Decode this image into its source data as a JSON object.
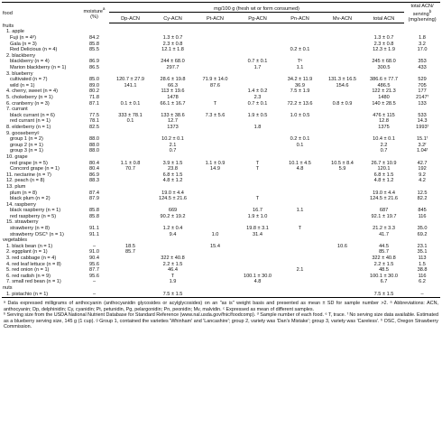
{
  "header": {
    "food": "food",
    "moisture": "moisture",
    "moisture_sup": "a",
    "moisture_unit": "(%)",
    "mg_span": "mg/100 g (fresh wt or form consumed)",
    "cols": [
      "Dp-ACN",
      "Cy-ACN",
      "Pt-ACN",
      "Pg-ACN",
      "Pn-ACN",
      "Mv-ACN",
      "total ACN"
    ],
    "serving": "total ACN/",
    "serving2": "serving",
    "serving_sup": "b",
    "serving_unit": "(mg/serving)"
  },
  "rows": [
    {
      "label": "fruits",
      "cat": true,
      "indent": 0
    },
    {
      "label": "1. apple",
      "cat": true,
      "indent": 1
    },
    {
      "label": "Fuji (n = 4ᵈ)",
      "indent": 2,
      "v": [
        "84.2",
        "",
        "1.3 ± 0.7",
        "",
        "",
        "",
        "",
        "1.3 ± 0.7",
        "1.8"
      ]
    },
    {
      "label": "Gala (n = 3)",
      "indent": 2,
      "v": [
        "85.8",
        "",
        "2.3 ± 0.8",
        "",
        "",
        "",
        "",
        "2.3 ± 0.8",
        "3.2"
      ]
    },
    {
      "label": "Red Delicious (n = 4)",
      "indent": 2,
      "v": [
        "85.5",
        "",
        "12.1 ± 1.8",
        "",
        "",
        "0.2 ± 0.1",
        "",
        "12.3 ± 1.9",
        "17.0"
      ]
    },
    {
      "label": "2. blackberry",
      "cat": true,
      "indent": 1
    },
    {
      "label": "blackberry (n = 4)",
      "indent": 2,
      "v": [
        "86.9",
        "",
        "244 ± 68.0",
        "",
        "0.7 ± 0.1",
        "Tᵉ",
        "",
        "245 ± 68.0",
        "353"
      ]
    },
    {
      "label": "Marion blackberry (n = 1)",
      "indent": 2,
      "v": [
        "86.5",
        "",
        "297.7",
        "",
        "1.7",
        "1.1",
        "",
        "300.5",
        "433"
      ]
    },
    {
      "label": "3. blueberry",
      "cat": true,
      "indent": 1
    },
    {
      "label": "cultivated (n = 7)",
      "indent": 2,
      "v": [
        "85.0",
        "120.7 ± 27.9",
        "28.6 ± 19.8",
        "71.9 ± 14.0",
        "",
        "34.2 ± 11.9",
        "131.3 ± 16.5",
        "386.6 ± 77.7",
        "529"
      ]
    },
    {
      "label": "wild (n = 1)",
      "indent": 2,
      "v": [
        "89.0",
        "141.1",
        "66.3",
        "87.6",
        "",
        "36.9",
        "154.6",
        "486.5",
        "705"
      ]
    },
    {
      "label": "4. cherry, sweet (n = 4)",
      "indent": 1,
      "v": [
        "80.2",
        "",
        "113 ± 19.6",
        "",
        "1.4 ± 0.2",
        "7.5 ± 1.9",
        "",
        "122 ± 21.3",
        "177"
      ]
    },
    {
      "label": "5. chokeberry (n = 1)",
      "indent": 1,
      "v": [
        "71.8",
        "",
        "1478",
        "",
        "2.3",
        "",
        "",
        "1480",
        "2147ᶠ"
      ]
    },
    {
      "label": "6. cranberry (n = 3)",
      "indent": 1,
      "v": [
        "87.1",
        "0.1 ± 0.1",
        "66.1 ± 16.7",
        "T",
        "0.7 ± 0.1",
        "72.2 ± 13.6",
        "0.8 ± 0.9",
        "140 ± 28.5",
        "133"
      ]
    },
    {
      "label": "7. currant",
      "cat": true,
      "indent": 1
    },
    {
      "label": "black currant (n = 6)",
      "indent": 2,
      "v": [
        "77.5",
        "333 ± 78.1",
        "133 ± 38.6",
        "7.3 ± 5.6",
        "1.9 ± 0.5",
        "1.0 ± 0.5",
        "",
        "476 ± 115",
        "533"
      ]
    },
    {
      "label": "red currant (n = 1)",
      "indent": 2,
      "v": [
        "78.1",
        "0.1",
        "12.7",
        "",
        "",
        "",
        "",
        "12.8",
        "14.3"
      ]
    },
    {
      "label": "8. elderberry (n = 1)",
      "indent": 1,
      "v": [
        "82.5",
        "",
        "1373",
        "",
        "1.8",
        "",
        "",
        "1375",
        "1993ᶠ"
      ]
    },
    {
      "label": "9. gooseberryᵍ",
      "cat": true,
      "indent": 1
    },
    {
      "label": "group 1 (n = 2)",
      "indent": 2,
      "v": [
        "88.0",
        "",
        "10.2 ± 0.1",
        "",
        "",
        "0.2 ± 0.1",
        "",
        "10.4 ± 0.1",
        "15.1ᶠ"
      ]
    },
    {
      "label": "group 2 (n = 1)",
      "indent": 2,
      "v": [
        "88.0",
        "",
        "2.1",
        "",
        "",
        "0.1",
        "",
        "2.2",
        "3.2ᶠ"
      ]
    },
    {
      "label": "group 3 (n = 1)",
      "indent": 2,
      "v": [
        "88.0",
        "",
        "0.7",
        "",
        "",
        "",
        "",
        "0.7",
        "1.04ᶠ"
      ]
    },
    {
      "label": "10. grape",
      "cat": true,
      "indent": 1
    },
    {
      "label": "red grape (n = 5)",
      "indent": 2,
      "v": [
        "80.4",
        "1.1 ± 0.8",
        "3.9 ± 1.5",
        "1.1 ± 0.9",
        "T",
        "10.1 ± 4.5",
        "10.5 ± 8.4",
        "26.7 ± 10.9",
        "42.7"
      ]
    },
    {
      "label": "Concord grape (n = 1)",
      "indent": 2,
      "v": [
        "80.4",
        "70.7",
        "23.8",
        "14.9",
        "T",
        "4.8",
        "5.9",
        "120.1",
        "192"
      ]
    },
    {
      "label": "11. nectarine (n = 7)",
      "indent": 1,
      "v": [
        "86.9",
        "",
        "6.8 ± 1.5",
        "",
        "",
        "",
        "",
        "6.8 ± 1.5",
        "9.2"
      ]
    },
    {
      "label": "12. peach (n = 8)",
      "indent": 1,
      "v": [
        "88.3",
        "",
        "4.8 ± 1.2",
        "",
        "",
        "",
        "",
        "4.8 ± 1.2",
        "4.2"
      ]
    },
    {
      "label": "13. plum",
      "cat": true,
      "indent": 1
    },
    {
      "label": "plum (n = 8)",
      "indent": 2,
      "v": [
        "87.4",
        "",
        "19.0 ± 4.4",
        "",
        "",
        "",
        "",
        "19.0 ± 4.4",
        "12.5"
      ]
    },
    {
      "label": "black plum (n = 2)",
      "indent": 2,
      "v": [
        "87.9",
        "",
        "124.5 ± 21.6",
        "",
        "T",
        "",
        "",
        "124.5 ± 21.6",
        "82.2"
      ]
    },
    {
      "label": "14. raspberry",
      "cat": true,
      "indent": 1
    },
    {
      "label": "black raspberry (n = 1)",
      "indent": 2,
      "v": [
        "85.8",
        "",
        "669",
        "",
        "16.7",
        "1.1",
        "",
        "687",
        "845"
      ]
    },
    {
      "label": "red raspberry (n = 5)",
      "indent": 2,
      "v": [
        "85.8",
        "",
        "90.2 ± 19.2",
        "",
        "1.9 ± 1.0",
        "",
        "",
        "92.1 ± 19.7",
        "116"
      ]
    },
    {
      "label": "15. strawberry",
      "cat": true,
      "indent": 1
    },
    {
      "label": "strawberry (n = 8)",
      "indent": 2,
      "v": [
        "91.1",
        "",
        "1.2 ± 0.4",
        "",
        "19.8 ± 3.1",
        "T",
        "",
        "21.2 ± 3.3",
        "35.0"
      ]
    },
    {
      "label": "strawberry OSCʰ (n = 1)",
      "indent": 2,
      "v": [
        "91.1",
        "",
        "9.4",
        "1.0",
        "31.4",
        "",
        "",
        "41.7",
        "69.2"
      ]
    },
    {
      "label": "vegetables",
      "cat": true,
      "indent": 0
    },
    {
      "label": "1. black bean (n = 1)",
      "indent": 1,
      "v": [
        "–",
        "18.5",
        "",
        "15.4",
        "",
        "",
        "10.6",
        "44.5",
        "23.1"
      ]
    },
    {
      "label": "2. eggplant (n = 1)",
      "indent": 1,
      "v": [
        "91.0",
        "85.7",
        "",
        "",
        "",
        "",
        "",
        "85.7",
        "35.1"
      ]
    },
    {
      "label": "3. red cabbage (n = 4)",
      "indent": 1,
      "v": [
        "90.4",
        "",
        "322 ± 40.8",
        "",
        "",
        "",
        "",
        "322 ± 40.8",
        "113"
      ]
    },
    {
      "label": "4. red leaf lettuce (n = 8)",
      "indent": 1,
      "v": [
        "95.6",
        "",
        "2.2 ± 1.5",
        "",
        "",
        "",
        "",
        "2.2 ± 1.5",
        "1.5"
      ]
    },
    {
      "label": "5. red onion (n = 1)",
      "indent": 1,
      "v": [
        "87.7",
        "",
        "46.4",
        "",
        "",
        "2.1",
        "",
        "48.5",
        "38.8"
      ]
    },
    {
      "label": "6. red radish (n = 9)",
      "indent": 1,
      "v": [
        "95.6",
        "",
        "T",
        "",
        "100.1 ± 30.0",
        "",
        "",
        "100.1 ± 30.0",
        "116"
      ]
    },
    {
      "label": "7. small red bean (n = 1)",
      "indent": 1,
      "v": [
        "–",
        "",
        "1.9",
        "",
        "4.8",
        "",
        "",
        "6.7",
        "6.2"
      ]
    },
    {
      "label": "nuts",
      "cat": true,
      "indent": 0
    },
    {
      "label": "1. pistachio (n = 1)",
      "indent": 1,
      "last": true,
      "v": [
        "–",
        "",
        "7.5 ± 1.5",
        "",
        "",
        "",
        "",
        "7.5 ± 1.5",
        "–"
      ]
    }
  ],
  "footnotes": [
    "ᵃ Data expressed milligrams of anthocyanin (anthocyanidin glycosides or acylglycosides) on an \"as is\" weight basis and presented as mean ± SD for sample number >2. ᵃ Abbreviations: ACN, anthocyanin; Dp, delphinidin; Cy, cyanidin; Pt, petunidin, Pg, pelargonidin; Pn, peonidin; Mv, malvidin. ᶜ Expressed as mean of different samples.",
    "ᵇ Serving size from the USDA National Nutrient Database for Standard Reference (www.nal.usda.gov/fnic/foodcomp). ᵈ Sample number of each food. ᵉ T, trace. ᶠ No serving size data available. Estimated as a blueberry serving size, 145 g (1 cup). ᵍ Group 1, contained the varieties 'Whinham' and 'Lancashire'; group 2, variety was 'Dan's Mistake'; group 3, variety was 'Careless'. ʰ OSC, Oregon Strawberry Commission."
  ]
}
